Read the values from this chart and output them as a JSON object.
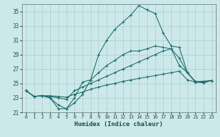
{
  "xlabel": "Humidex (Indice chaleur)",
  "bg_color": "#cde8e8",
  "grid_color": "#a8cccc",
  "line_color": "#1a6e6e",
  "xlim": [
    -0.5,
    23.5
  ],
  "ylim": [
    21,
    36
  ],
  "yticks": [
    21,
    23,
    25,
    27,
    29,
    31,
    33,
    35
  ],
  "xticks": [
    0,
    1,
    2,
    3,
    4,
    5,
    6,
    7,
    8,
    9,
    10,
    11,
    12,
    13,
    14,
    15,
    16,
    17,
    18,
    19,
    20,
    21,
    22,
    23
  ],
  "lines": [
    {
      "x": [
        0,
        1,
        2,
        3,
        4,
        5,
        6,
        7,
        8,
        9,
        10,
        11,
        12,
        13,
        14,
        15,
        16,
        17,
        18,
        19,
        20,
        21,
        22,
        23
      ],
      "y": [
        24.0,
        23.2,
        23.3,
        23.0,
        21.5,
        21.5,
        22.3,
        23.5,
        25.5,
        29.0,
        31.0,
        32.5,
        33.5,
        34.5,
        35.8,
        35.2,
        34.7,
        32.0,
        30.2,
        30.0,
        26.5,
        25.2,
        25.3,
        25.4
      ]
    },
    {
      "x": [
        0,
        1,
        2,
        3,
        4,
        5,
        6,
        7,
        8,
        9,
        10,
        11,
        12,
        13,
        14,
        15,
        16,
        17,
        18,
        19,
        20,
        21,
        22,
        23
      ],
      "y": [
        24.0,
        23.2,
        23.3,
        23.0,
        22.0,
        21.5,
        23.0,
        25.2,
        25.5,
        26.5,
        27.5,
        28.2,
        29.0,
        29.5,
        29.5,
        29.8,
        30.2,
        30.0,
        29.8,
        28.5,
        26.5,
        25.2,
        25.3,
        25.4
      ]
    },
    {
      "x": [
        0,
        1,
        2,
        3,
        4,
        5,
        6,
        7,
        8,
        9,
        10,
        11,
        12,
        13,
        14,
        15,
        16,
        17,
        18,
        19,
        20,
        21,
        22,
        23
      ],
      "y": [
        24.0,
        23.2,
        23.3,
        23.2,
        23.0,
        22.8,
        24.0,
        24.5,
        25.0,
        25.5,
        26.0,
        26.5,
        27.0,
        27.5,
        28.0,
        28.5,
        29.0,
        29.5,
        29.8,
        27.5,
        26.5,
        25.3,
        25.2,
        25.4
      ]
    },
    {
      "x": [
        0,
        1,
        2,
        3,
        4,
        5,
        6,
        7,
        8,
        9,
        10,
        11,
        12,
        13,
        14,
        15,
        16,
        17,
        18,
        19,
        20,
        21,
        22,
        23
      ],
      "y": [
        24.0,
        23.2,
        23.3,
        23.3,
        23.2,
        23.1,
        23.5,
        23.8,
        24.2,
        24.5,
        24.8,
        25.0,
        25.3,
        25.5,
        25.7,
        25.9,
        26.1,
        26.3,
        26.5,
        26.7,
        25.5,
        25.2,
        25.1,
        25.4
      ]
    }
  ]
}
